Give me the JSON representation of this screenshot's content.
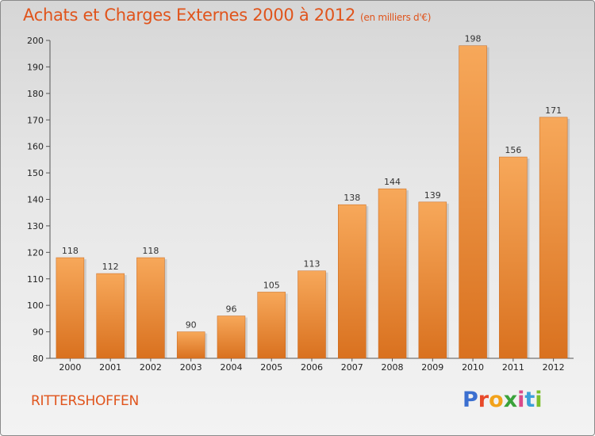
{
  "header": {
    "title": "Achats et Charges Externes 2000 à 2012",
    "subtitle": "(en milliers d'€)"
  },
  "footer": {
    "commune": "RITTERSHOFFEN",
    "logo": "Proxiti",
    "logo_colors": [
      "#3b6fd0",
      "#e8492a",
      "#f2a21a",
      "#3aa23a",
      "#d94b8a",
      "#3b9fd9",
      "#7bbf2a"
    ]
  },
  "colors": {
    "bar_light": "#f7a85a",
    "bar_dark": "#d9711f",
    "accent": "#e0541c"
  },
  "chart_data": {
    "type": "bar",
    "title": "Achats et Charges Externes 2000 à 2012",
    "subtitle": "(en milliers d'€)",
    "categories": [
      "2000",
      "2001",
      "2002",
      "2003",
      "2004",
      "2005",
      "2006",
      "2007",
      "2008",
      "2009",
      "2010",
      "2011",
      "2012"
    ],
    "values": [
      118,
      112,
      118,
      90,
      96,
      105,
      113,
      138,
      144,
      139,
      198,
      156,
      171
    ],
    "ylim": [
      80,
      200
    ],
    "yticks": [
      80,
      90,
      100,
      110,
      120,
      130,
      140,
      150,
      160,
      170,
      180,
      190,
      200
    ],
    "xlabel": "",
    "ylabel": "",
    "grid": false
  }
}
